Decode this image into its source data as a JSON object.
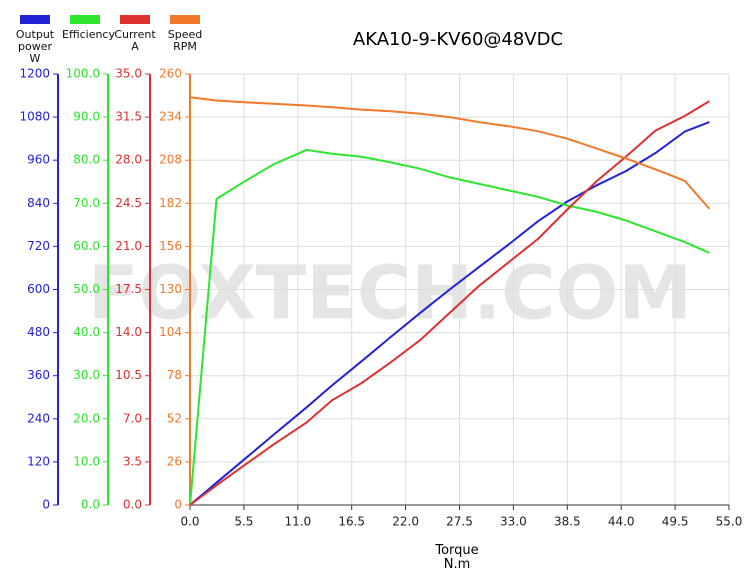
{
  "chart_data": {
    "type": "line",
    "title": "AKA10-9-KV60@48VDC",
    "x_label": "Torque N.m",
    "watermark": "FOXTECH.COM",
    "xlim": [
      0,
      55
    ],
    "xticks": [
      {
        "value": 0,
        "label": "0.0"
      },
      5.5,
      {
        "value": 11,
        "label": "11.0"
      },
      16.5,
      {
        "value": 22,
        "label": "22.0"
      },
      27.5,
      {
        "value": 33,
        "label": "33.0"
      },
      38.5,
      {
        "value": 44,
        "label": "44.0"
      },
      49.5,
      {
        "value": 55,
        "label": "55.0"
      }
    ],
    "grid": true,
    "x": [
      0,
      2.7,
      5.5,
      8.5,
      11.9,
      14.5,
      17.5,
      20.5,
      23.5,
      26.5,
      29.5,
      32.5,
      35.5,
      38.5,
      41.5,
      44.5,
      47.5,
      50.5,
      53
    ],
    "series": [
      {
        "name": "Output power W",
        "color": "#2222d8",
        "ylim": [
          0,
          1200
        ],
        "yticks": [
          0,
          120,
          240,
          360,
          480,
          600,
          720,
          840,
          960,
          1080,
          1200
        ],
        "values": [
          0,
          62,
          126,
          195,
          272,
          333,
          400,
          468,
          535,
          600,
          663,
          725,
          790,
          845,
          890,
          930,
          980,
          1040,
          1066
        ]
      },
      {
        "name": "Efficiency",
        "color": "#2ee62e",
        "ylim": [
          0,
          100
        ],
        "yticks": [
          {
            "value": 0,
            "label": "0.0"
          },
          {
            "value": 10,
            "label": "10.0"
          },
          {
            "value": 20,
            "label": "20.0"
          },
          {
            "value": 30,
            "label": "30.0"
          },
          {
            "value": 40,
            "label": "40.0"
          },
          {
            "value": 50,
            "label": "50.0"
          },
          {
            "value": 60,
            "label": "60.0"
          },
          {
            "value": 70,
            "label": "70.0"
          },
          {
            "value": 80,
            "label": "80.0"
          },
          {
            "value": 90,
            "label": "90.0"
          },
          {
            "value": 100,
            "label": "100.0"
          }
        ],
        "values": [
          0,
          71,
          75,
          79,
          82.4,
          81.5,
          80.8,
          79.5,
          78,
          76,
          74.5,
          73,
          71.5,
          69.5,
          68,
          66,
          63.5,
          61,
          58.5
        ]
      },
      {
        "name": "Current A",
        "color": "#dd3030",
        "ylim": [
          0,
          35
        ],
        "yticks": [
          {
            "value": 0,
            "label": "0.0"
          },
          3.5,
          {
            "value": 7,
            "label": "7.0"
          },
          10.5,
          {
            "value": 14,
            "label": "14.0"
          },
          17.5,
          {
            "value": 21,
            "label": "21.0"
          },
          24.5,
          {
            "value": 28,
            "label": "28.0"
          },
          31.5,
          {
            "value": 35,
            "label": "35.0"
          }
        ],
        "values": [
          0,
          1.6,
          3.2,
          4.9,
          6.7,
          8.5,
          9.9,
          11.6,
          13.4,
          15.6,
          17.8,
          19.7,
          21.6,
          24,
          26.3,
          28.3,
          30.4,
          31.6,
          32.8
        ]
      },
      {
        "name": "Speed RPM",
        "color": "#f07a2a",
        "ylim": [
          0,
          260
        ],
        "yticks": [
          0,
          26,
          52,
          78,
          104,
          130,
          156,
          182,
          208,
          234,
          260
        ],
        "values": [
          246,
          244,
          243,
          242,
          241,
          240,
          238.5,
          237.5,
          236,
          234,
          231,
          228.5,
          225.5,
          221,
          215,
          209,
          202.5,
          195.5,
          178.6
        ]
      }
    ]
  }
}
